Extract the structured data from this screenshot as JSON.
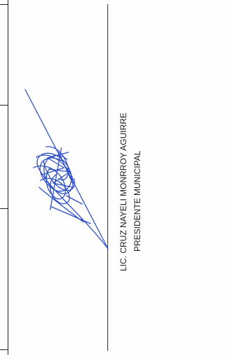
{
  "signature_block": {
    "signer_name": "LIC. CRUZ NAYELI  MONRROY AGUIRRE",
    "signer_title": "PRESIDENTE MUNICIPAL",
    "ink_color": "#2f4fc4"
  },
  "table_strip": {
    "cells": [
      "",
      "",
      ""
    ]
  }
}
